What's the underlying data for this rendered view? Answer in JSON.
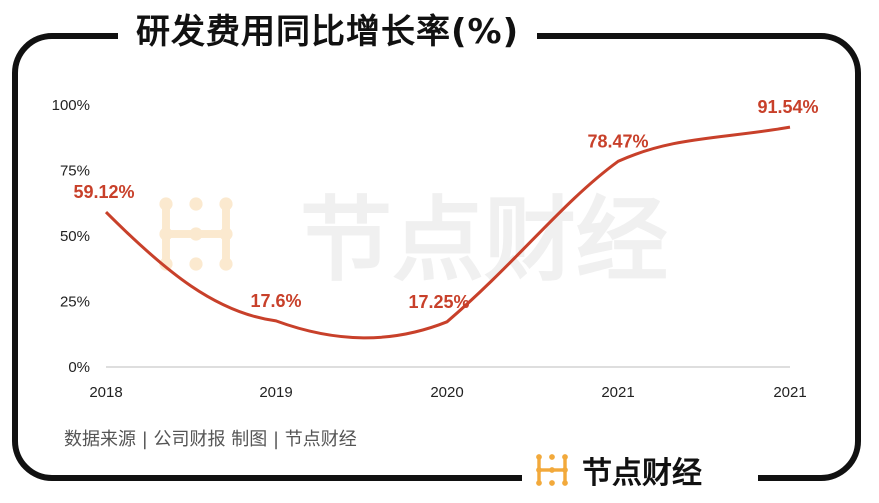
{
  "title": "研发费用同比增长率(%)",
  "source": "数据来源 | 公司财报  制图 | 节点财经",
  "brand": {
    "name": "节点财经",
    "icon": "node-logo-icon"
  },
  "watermark": "节点财经",
  "colors": {
    "line": "#c8402a",
    "label": "#c8402a",
    "logo": "#f2a93b",
    "watermark_logo": "#fbe9cf"
  },
  "chart_data": {
    "type": "line",
    "title": "研发费用同比增长率(%)",
    "categories": [
      "2018",
      "2019",
      "2020",
      "2021",
      "2021"
    ],
    "series": [
      {
        "values": [
          59.12,
          17.6,
          17.25,
          78.47,
          91.54
        ]
      }
    ],
    "data_labels": [
      "59.12%",
      "17.6%",
      "17.25%",
      "78.47%",
      "91.54%"
    ],
    "yticks": [
      "0%",
      "25%",
      "50%",
      "75%",
      "100%"
    ],
    "ylim": [
      0,
      100
    ],
    "grid": false,
    "legend": "none"
  }
}
